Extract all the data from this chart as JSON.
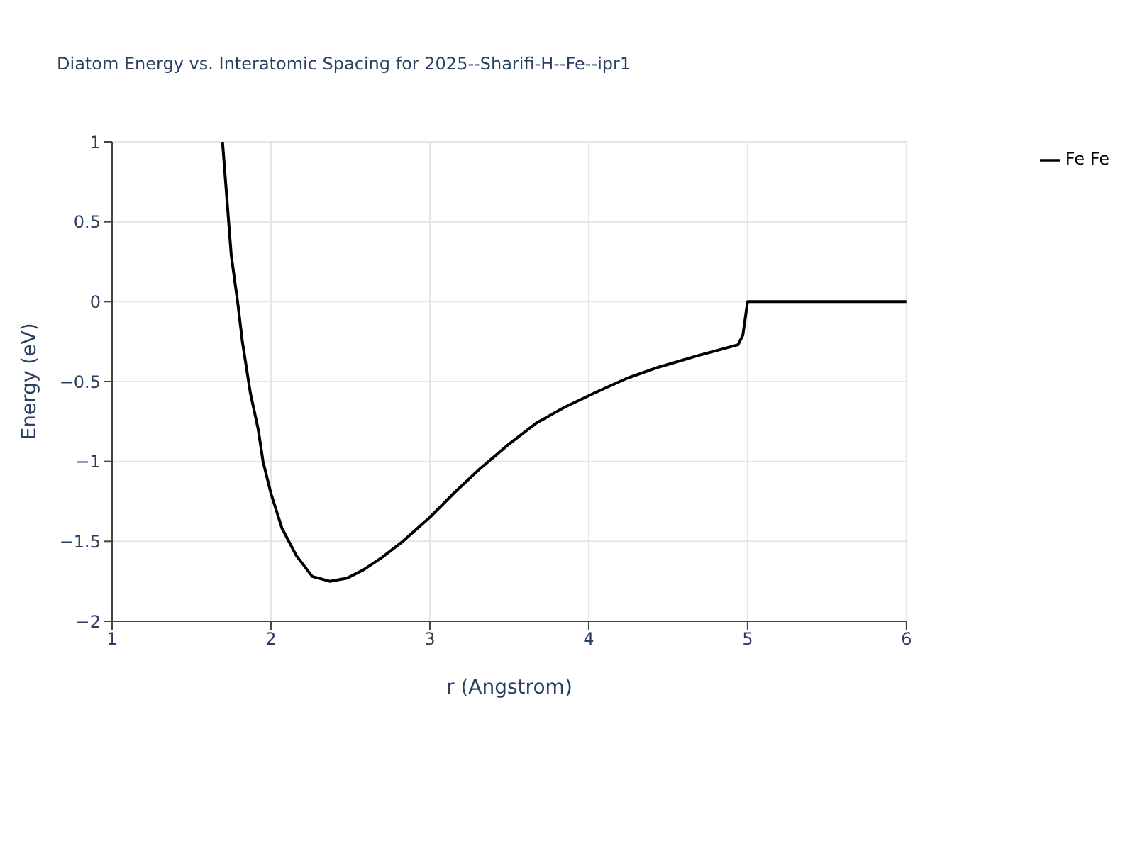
{
  "chart_data": {
    "type": "line",
    "title": "Diatom Energy vs. Interatomic Spacing for 2025--Sharifi-H--Fe--ipr1",
    "xlabel": "r (Angstrom)",
    "ylabel": "Energy (eV)",
    "x": [
      1.695,
      1.75,
      1.79,
      1.82,
      1.87,
      1.92,
      1.95,
      2.0,
      2.07,
      2.16,
      2.26,
      2.37,
      2.48,
      2.58,
      2.7,
      2.83,
      3.0,
      3.15,
      3.31,
      3.5,
      3.67,
      3.85,
      4.04,
      4.24,
      4.44,
      4.68,
      4.94,
      4.97,
      5.0,
      6.0
    ],
    "series": [
      {
        "name": "Fe Fe",
        "color": "#000000",
        "values": [
          1,
          0.29,
          0,
          -0.25,
          -0.57,
          -0.8,
          -1.0,
          -1.2,
          -1.42,
          -1.59,
          -1.72,
          -1.75,
          -1.73,
          -1.68,
          -1.6,
          -1.5,
          -1.35,
          -1.2,
          -1.05,
          -0.89,
          -0.76,
          -0.66,
          -0.57,
          -0.48,
          -0.41,
          -0.34,
          -0.27,
          -0.21,
          0,
          0
        ]
      }
    ],
    "xlim": [
      1,
      6
    ],
    "xticks": [
      1,
      2,
      3,
      4,
      5,
      6
    ],
    "ylim": [
      -2,
      1
    ],
    "yticks": [
      {
        "value": -2,
        "label": "−2"
      },
      {
        "value": -1.5,
        "label": "−1.5"
      },
      {
        "value": -1,
        "label": "−1"
      },
      {
        "value": -0.5,
        "label": "−0.5"
      },
      0,
      0.5,
      1
    ],
    "grid": true,
    "legend": "top right",
    "marker": "none",
    "line_style": "solid"
  }
}
